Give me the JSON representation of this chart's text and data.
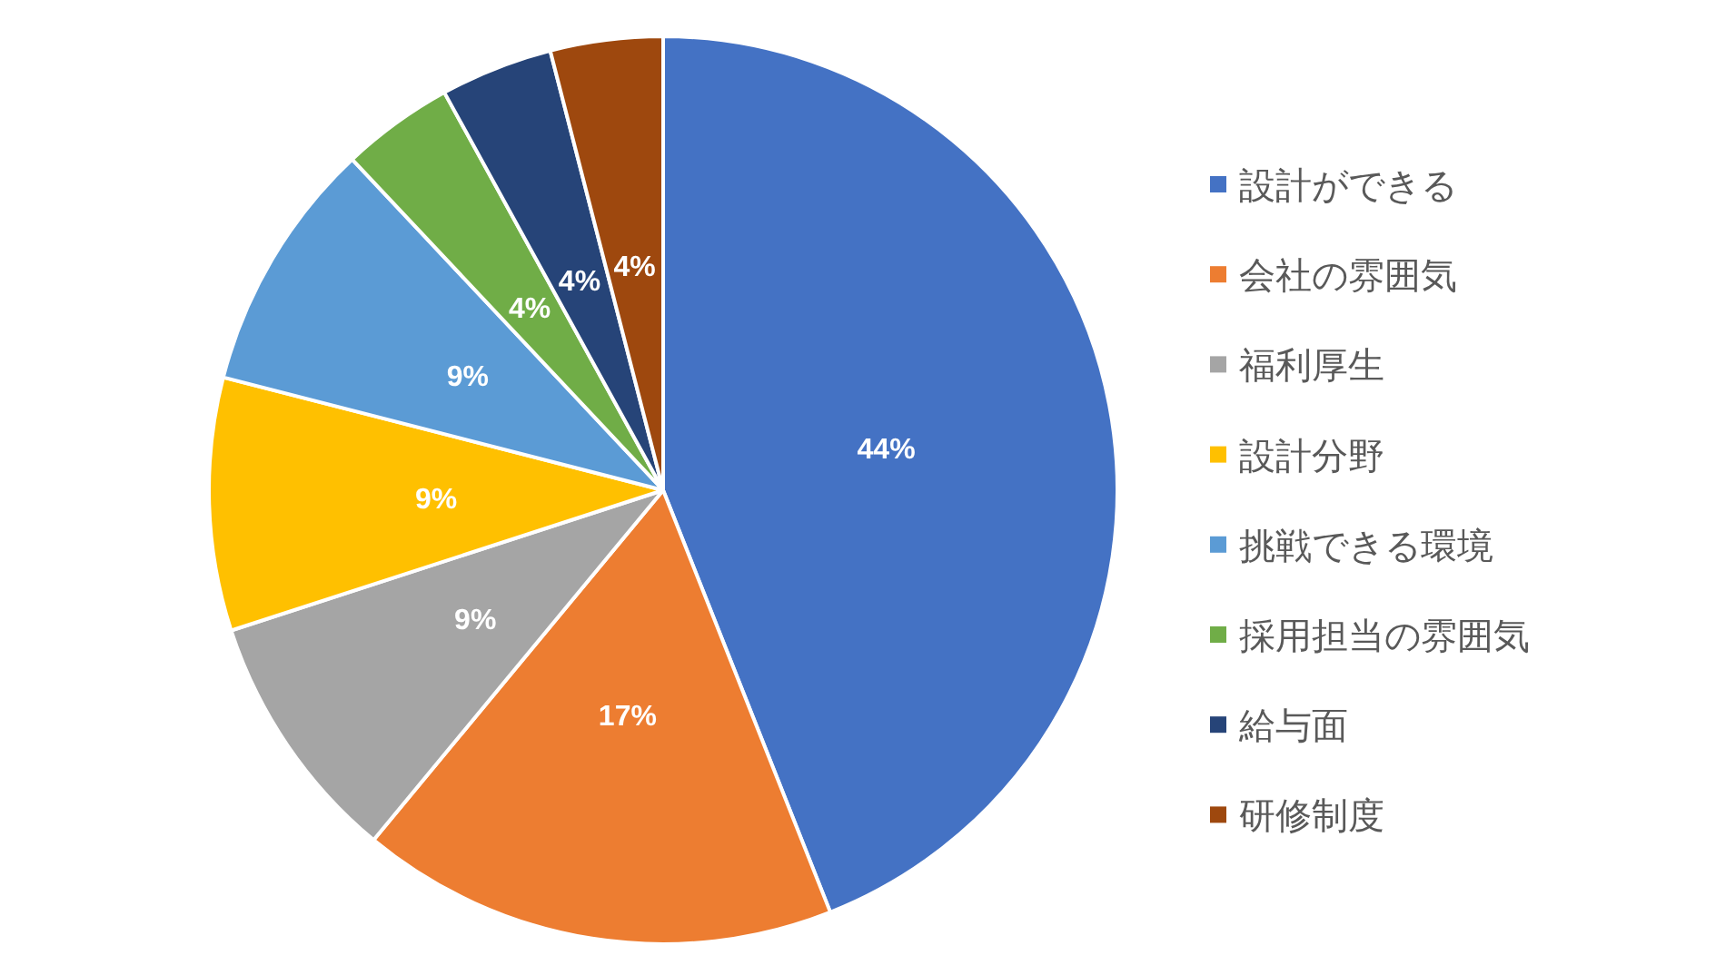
{
  "chart_data": {
    "type": "pie",
    "categories": [
      "設計ができる",
      "会社の雰囲気",
      "福利厚生",
      "設計分野",
      "挑戦できる環境",
      "採用担当の雰囲気",
      "給与面",
      "研修制度"
    ],
    "values": [
      44,
      17,
      9,
      9,
      9,
      4,
      4,
      4
    ],
    "colors": [
      "#4472c4",
      "#ed7d31",
      "#a5a5a5",
      "#ffc000",
      "#5b9bd5",
      "#70ad47",
      "#264478",
      "#9e480e"
    ],
    "value_labels": [
      "44%",
      "17%",
      "9%",
      "9%",
      "9%",
      "4%",
      "4%",
      "4%"
    ],
    "legend": "right"
  }
}
